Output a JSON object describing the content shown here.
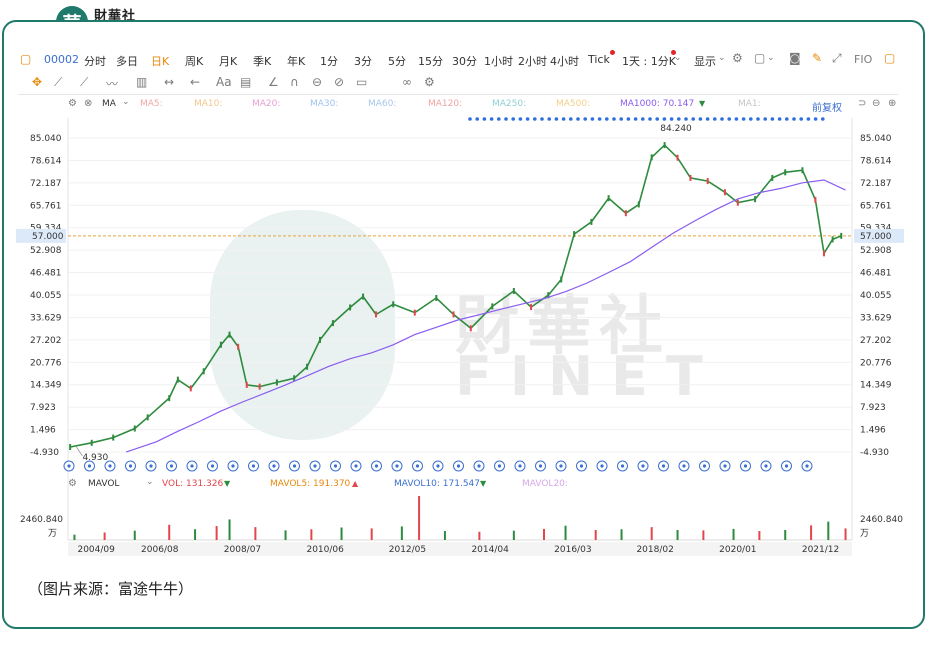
{
  "brand": {
    "seal_char": "華",
    "name_cn": "財華社",
    "name_en": "FINET"
  },
  "toolbar": {
    "stock_code": "00002",
    "periods": [
      "分时",
      "多日",
      "日K",
      "周K",
      "月K",
      "季K",
      "年K",
      "1分",
      "3分",
      "5分",
      "15分",
      "30分",
      "1小时",
      "2小时",
      "4小时",
      "Tick",
      "1天 : 1分K"
    ],
    "active_period": "日K",
    "display_label": "显示",
    "fio_label": "FIO"
  },
  "indicators": {
    "ma_label": "MA",
    "ma_items": [
      {
        "label": "MA5:",
        "color": "#f2a7a7"
      },
      {
        "label": "MA10:",
        "color": "#f3c68c"
      },
      {
        "label": "MA20:",
        "color": "#e9a0d2"
      },
      {
        "label": "MA30:",
        "color": "#9ec3ee"
      },
      {
        "label": "MA60:",
        "color": "#a7c6e8"
      },
      {
        "label": "MA120:",
        "color": "#f0a3a3"
      },
      {
        "label": "MA250:",
        "color": "#8fd0d6"
      },
      {
        "label": "MA500:",
        "color": "#f3cf8a"
      },
      {
        "label": "MA1000: 70.147",
        "color": "#8a5cf0"
      },
      {
        "label": "MA1:",
        "color": "#c5c5c5"
      }
    ],
    "adjust_label": "前复权",
    "vol_label": "MAVOL",
    "vol_items": [
      {
        "label": "VOL: 131.326",
        "color": "#e2464b"
      },
      {
        "label": "MAVOL5: 191.370",
        "color": "#e8890c"
      },
      {
        "label": "MAVOL10: 171.547",
        "color": "#3b6fd1"
      },
      {
        "label": "MAVOL20:",
        "color": "#d6a7e8"
      }
    ],
    "vol_value": "2460.840",
    "vol_unit": "万"
  },
  "chart_data": {
    "type": "line",
    "y_ticks": [
      "85.040",
      "78.614",
      "72.187",
      "65.761",
      "59.334",
      "52.908",
      "46.481",
      "40.055",
      "33.629",
      "27.202",
      "20.776",
      "14.349",
      "7.923",
      "1.496",
      "-4.930"
    ],
    "ylim": [
      -4.93,
      85.04
    ],
    "current_price": "57.000",
    "high_label": "84.240",
    "low_label": "4.930",
    "x_ticks": [
      "2004/09",
      "2006/08",
      "2008/07",
      "2010/06",
      "2012/05",
      "2014/04",
      "2016/03",
      "2018/02",
      "2020/01",
      "2021/12"
    ],
    "x_tick_years": [
      2004.67,
      2006.58,
      2008.5,
      2010.42,
      2012.33,
      2014.25,
      2016.17,
      2018.08,
      2020.0,
      2021.92
    ],
    "x_range": [
      2004.45,
      2022.65
    ],
    "series": [
      {
        "name": "",
        "color": "#2e8b3e",
        "x": [
          2004.5,
          2005.0,
          2005.5,
          2006.0,
          2006.3,
          2006.8,
          2007.0,
          2007.3,
          2007.6,
          2008.0,
          2008.2,
          2008.4,
          2008.6,
          2008.9,
          2009.3,
          2009.7,
          2010.0,
          2010.3,
          2010.6,
          2011.0,
          2011.3,
          2011.6,
          2012.0,
          2012.5,
          2013.0,
          2013.4,
          2013.8,
          2014.3,
          2014.8,
          2015.2,
          2015.6,
          2015.9,
          2016.2,
          2016.6,
          2017.0,
          2017.4,
          2017.7,
          2018.0,
          2018.3,
          2018.6,
          2018.9,
          2019.3,
          2019.7,
          2020.0,
          2020.4,
          2020.8,
          2021.1,
          2021.5,
          2021.8,
          2022.0,
          2022.2,
          2022.4
        ],
        "y": [
          -3.5,
          -2.3,
          -0.8,
          1.8,
          5.0,
          10.5,
          15.8,
          13.3,
          18.2,
          25.8,
          28.7,
          25.2,
          14.3,
          13.8,
          15.0,
          16.2,
          19.5,
          27.2,
          32.0,
          36.5,
          39.6,
          34.5,
          37.4,
          35.0,
          39.2,
          34.5,
          30.5,
          36.8,
          41.2,
          36.6,
          40.0,
          44.5,
          57.5,
          61.0,
          67.8,
          63.5,
          66.0,
          79.5,
          83.0,
          79.4,
          73.6,
          72.7,
          69.5,
          66.5,
          67.5,
          73.6,
          75.2,
          75.8,
          67.3,
          52.0,
          56.0,
          57.0
        ]
      },
      {
        "name": "MA1000",
        "color": "#8a5cf0",
        "x": [
          2005.8,
          2006.5,
          2007.0,
          2007.5,
          2008.0,
          2008.5,
          2009.0,
          2009.5,
          2010.0,
          2010.5,
          2011.0,
          2011.5,
          2012.0,
          2012.5,
          2013.0,
          2013.5,
          2014.0,
          2014.5,
          2015.0,
          2015.5,
          2016.0,
          2016.5,
          2017.0,
          2017.5,
          2018.0,
          2018.5,
          2019.0,
          2019.5,
          2020.0,
          2020.5,
          2021.0,
          2021.5,
          2022.0,
          2022.5
        ],
        "y": [
          -4.93,
          -2.0,
          1.0,
          3.8,
          6.8,
          9.4,
          11.8,
          14.3,
          16.9,
          19.6,
          21.8,
          23.5,
          25.8,
          28.7,
          30.8,
          32.9,
          34.4,
          36.0,
          37.5,
          39.0,
          41.0,
          43.5,
          46.5,
          49.6,
          53.7,
          57.8,
          61.3,
          64.6,
          67.6,
          69.4,
          70.6,
          72.2,
          73.0,
          70.1
        ]
      }
    ],
    "volume": {
      "name": "VOL",
      "color": "#e2464b",
      "x": [
        2004.6,
        2005.3,
        2006.0,
        2006.8,
        2007.4,
        2007.9,
        2008.2,
        2008.8,
        2009.5,
        2010.1,
        2010.8,
        2011.5,
        2012.2,
        2012.6,
        2013.2,
        2014.0,
        2014.8,
        2015.5,
        2016.0,
        2016.7,
        2017.3,
        2018.0,
        2018.6,
        2019.2,
        2019.9,
        2020.5,
        2021.1,
        2021.7,
        2022.1,
        2022.5
      ],
      "y": [
        300,
        420,
        520,
        850,
        600,
        780,
        1150,
        720,
        540,
        600,
        700,
        650,
        760,
        2460.84,
        500,
        460,
        520,
        620,
        800,
        560,
        600,
        720,
        560,
        540,
        620,
        500,
        560,
        820,
        1030,
        650
      ]
    }
  },
  "caption": "（图片来源：富途牛牛）"
}
